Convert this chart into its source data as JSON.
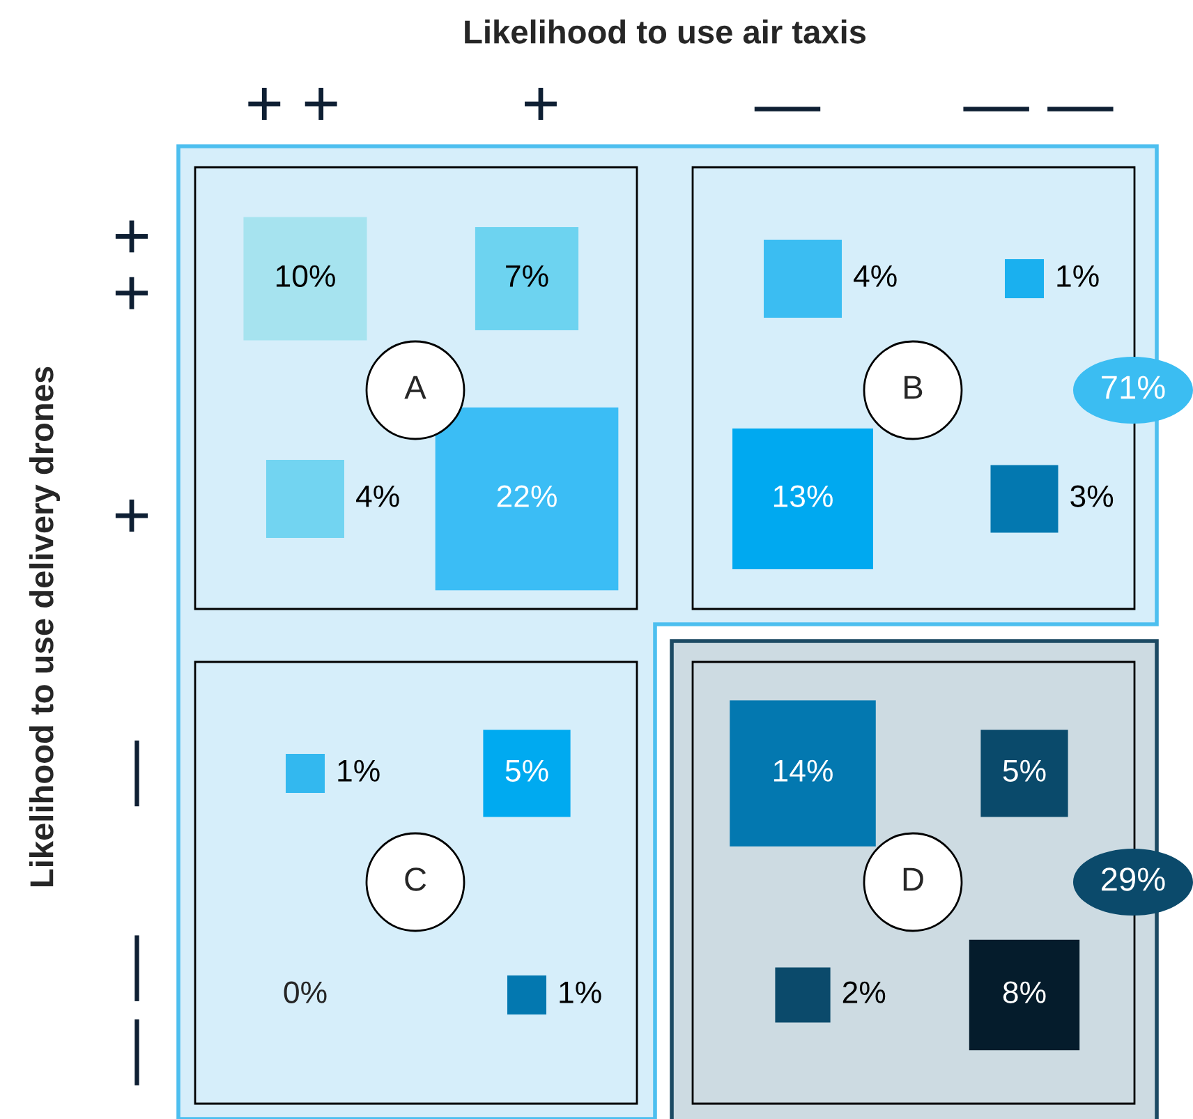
{
  "chart_data": {
    "type": "heatmap",
    "xlabel": "Likelihood to use air taxis",
    "ylabel": "Likelihood to use delivery drones",
    "categories": [
      "+ +",
      "+",
      "—",
      "— —"
    ],
    "y_categories": [
      "+ +",
      "+",
      "—",
      "— —"
    ],
    "cells": [
      [
        10,
        7,
        4,
        1
      ],
      [
        4,
        22,
        13,
        3
      ],
      [
        1,
        5,
        14,
        5
      ],
      [
        0,
        1,
        2,
        8
      ]
    ],
    "colors": [
      [
        "#a6e3ef",
        "#6dd3f0",
        "#3bbdf2",
        "#1ab0ef"
      ],
      [
        "#72d4f1",
        "#3bbdf5",
        "#00a9f0",
        "#0378b0"
      ],
      [
        "#33b8ef",
        "#00aaf0",
        "#0378b0",
        "#0a4a6b"
      ],
      [
        "#0378b0",
        "#0378b0",
        "#0b4a6b",
        "#051c2c"
      ]
    ],
    "cell_labels": [
      [
        "10%",
        "7%",
        "4%",
        "1%"
      ],
      [
        "4%",
        "22%",
        "13%",
        "3%"
      ],
      [
        "1%",
        "5%",
        "14%",
        "5%"
      ],
      [
        "0%",
        "1%",
        "2%",
        "8%"
      ]
    ],
    "annotations": [
      "A",
      "B",
      "C",
      "D",
      "71%",
      "29%"
    ]
  }
}
